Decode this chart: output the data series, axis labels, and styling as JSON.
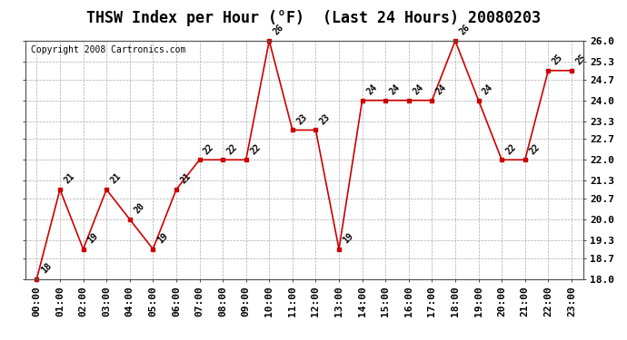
{
  "title": "THSW Index per Hour (°F)  (Last 24 Hours) 20080203",
  "copyright": "Copyright 2008 Cartronics.com",
  "hours": [
    "00:00",
    "01:00",
    "02:00",
    "03:00",
    "04:00",
    "05:00",
    "06:00",
    "07:00",
    "08:00",
    "09:00",
    "10:00",
    "11:00",
    "12:00",
    "13:00",
    "14:00",
    "15:00",
    "16:00",
    "17:00",
    "18:00",
    "19:00",
    "20:00",
    "21:00",
    "22:00",
    "23:00"
  ],
  "y_values": [
    18,
    21,
    19,
    21,
    20,
    19,
    21,
    22,
    22,
    22,
    26,
    23,
    23,
    19,
    24,
    24,
    24,
    24,
    26,
    24,
    22,
    22,
    25,
    25
  ],
  "x_indices": [
    0,
    1,
    2,
    3,
    4,
    5,
    6,
    7,
    8,
    9,
    10,
    11,
    12,
    13,
    14,
    15,
    16,
    17,
    18,
    19,
    20,
    21,
    22,
    23
  ],
  "ylim_min": 18.0,
  "ylim_max": 26.0,
  "yticks": [
    18.0,
    18.7,
    19.3,
    20.0,
    20.7,
    21.3,
    22.0,
    22.7,
    23.3,
    24.0,
    24.7,
    25.3,
    26.0
  ],
  "ytick_labels": [
    "18.0",
    "18.7",
    "19.3",
    "20.0",
    "20.7",
    "21.3",
    "22.0",
    "22.7",
    "23.3",
    "24.0",
    "24.7",
    "25.3",
    "26.0"
  ],
  "line_color": "#cc0000",
  "marker_color": "#cc0000",
  "bg_color": "#ffffff",
  "plot_bg_color": "#ffffff",
  "grid_color": "#aaaaaa",
  "title_fontsize": 12,
  "label_fontsize": 7,
  "tick_fontsize": 8,
  "copyright_fontsize": 7
}
